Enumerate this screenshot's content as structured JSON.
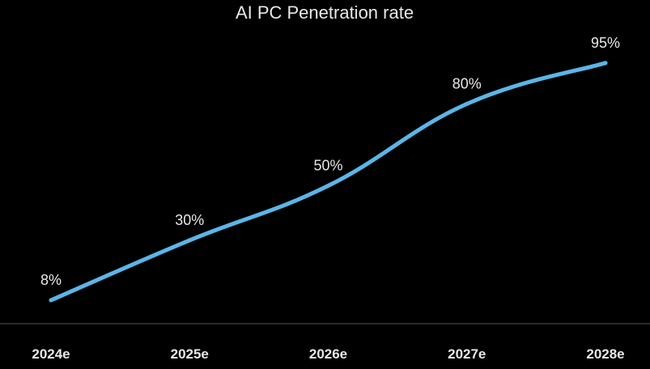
{
  "chart_data": {
    "type": "line",
    "title": "AI PC Penetration rate",
    "xlabel": "",
    "ylabel": "",
    "categories": [
      "2024e",
      "2025e",
      "2026e",
      "2027e",
      "2028e"
    ],
    "series": [
      {
        "values": [
          8,
          30,
          50,
          80,
          95
        ],
        "data_labels": [
          "8%",
          "30%",
          "50%",
          "80%",
          "95%"
        ],
        "color": "#5bb5e8"
      }
    ],
    "ylim": [
      0,
      100
    ],
    "grid": false,
    "legend": "none",
    "background": "#000000",
    "text_color": "#e8e8e8"
  }
}
